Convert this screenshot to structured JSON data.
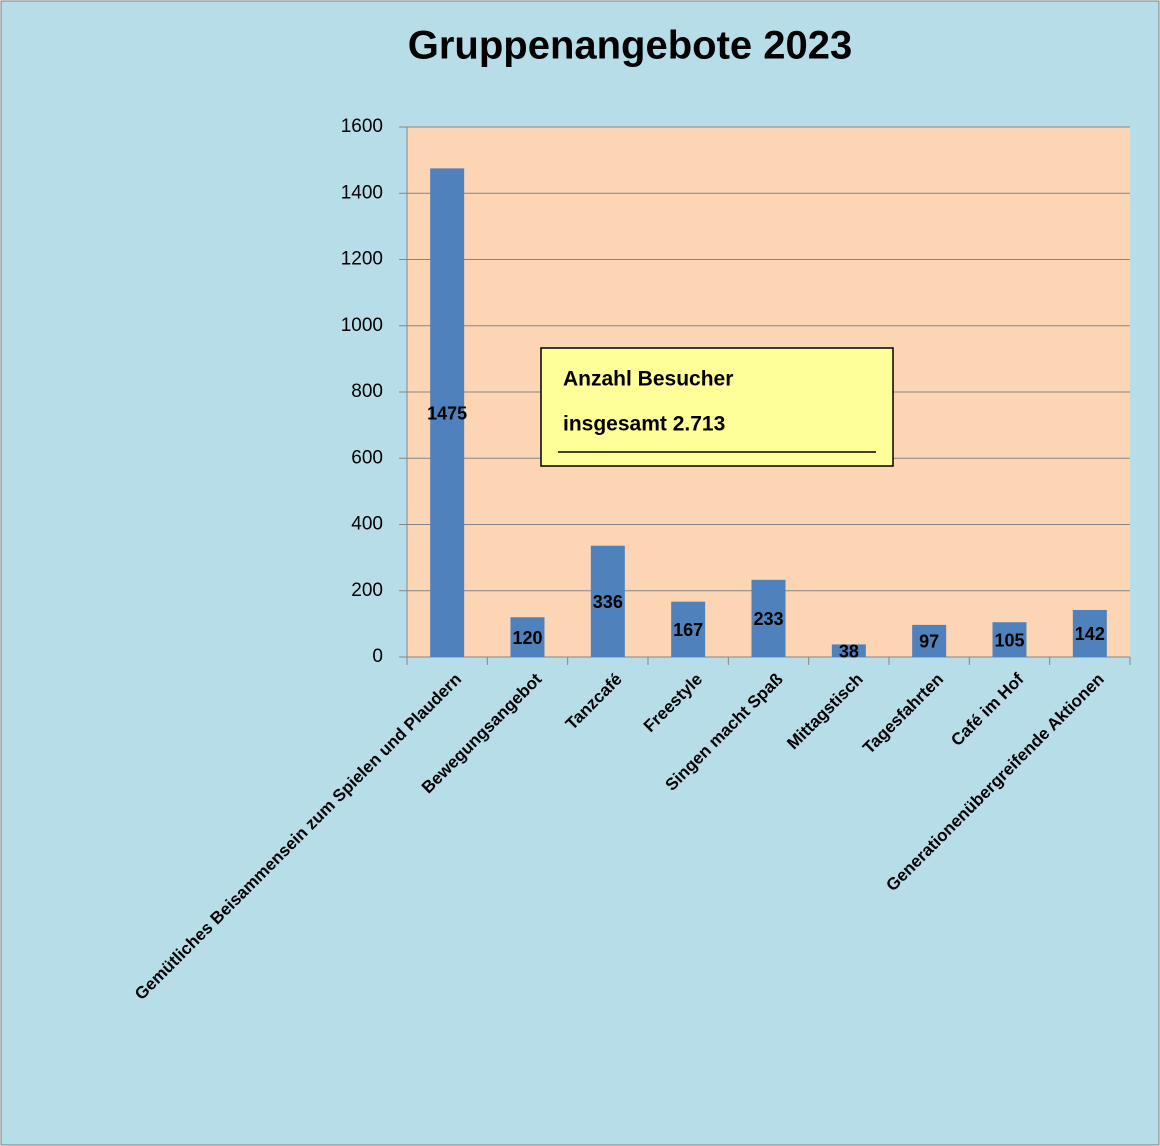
{
  "chart_data": {
    "type": "bar",
    "title": "Gruppenangebote 2023",
    "categories": [
      "Gemütliches Beisammensein zum Spielen und Plaudern",
      "Bewegungsangebot",
      "Tanzcafé",
      "Freestyle",
      "Singen macht Spaß",
      "Mittagstisch",
      "Tagesfahrten",
      "Café im Hof",
      "Generationenübergreifende Aktionen"
    ],
    "values": [
      1475,
      120,
      336,
      167,
      233,
      38,
      97,
      105,
      142
    ],
    "color": "#4f81bd",
    "ylim": [
      0,
      1600
    ],
    "yticks": [
      0,
      200,
      400,
      600,
      800,
      1000,
      1200,
      1400,
      1600
    ],
    "grid": true,
    "annotation": [
      "Anzahl Besucher",
      "insgesamt 2.713"
    ]
  }
}
